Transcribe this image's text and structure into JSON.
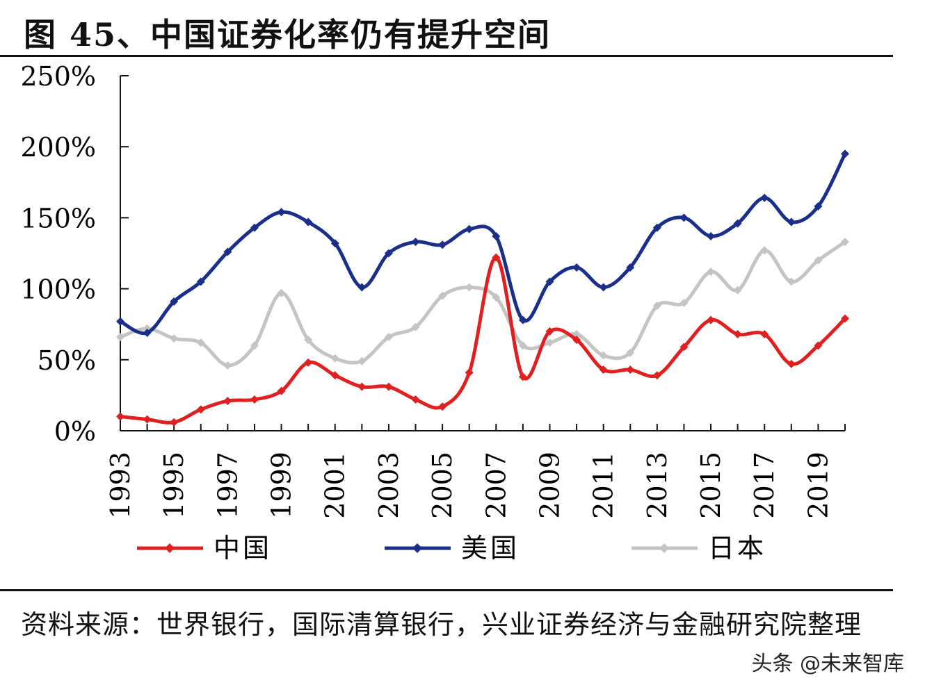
{
  "title": "图 45、中国证券化率仍有提升空间",
  "source": "资料来源：世界银行，国际清算银行，兴业证券经济与金融研究院整理",
  "watermark": "头条 @未来智库",
  "chart_data": {
    "type": "line",
    "title": "",
    "xlabel": "",
    "ylabel": "",
    "ylim": [
      0,
      250
    ],
    "yticks": [
      "0%",
      "50%",
      "100%",
      "150%",
      "200%",
      "250%"
    ],
    "x": [
      1993,
      1994,
      1995,
      1996,
      1997,
      1998,
      1999,
      2000,
      2001,
      2002,
      2003,
      2004,
      2005,
      2006,
      2007,
      2008,
      2009,
      2010,
      2011,
      2012,
      2013,
      2014,
      2015,
      2016,
      2017,
      2018,
      2019,
      2020
    ],
    "xtick_labels": [
      "1993",
      "1995",
      "1997",
      "1999",
      "2001",
      "2003",
      "2005",
      "2007",
      "2009",
      "2011",
      "2013",
      "2015",
      "2017",
      "2019"
    ],
    "legend_position": "bottom",
    "grid": false,
    "series": [
      {
        "name": "中国",
        "color": "#e02020",
        "values": [
          10,
          8,
          6,
          15,
          21,
          22,
          28,
          48,
          39,
          31,
          31,
          22,
          17,
          41,
          122,
          38,
          70,
          64,
          43,
          43,
          39,
          59,
          78,
          68,
          68,
          47,
          60,
          79
        ]
      },
      {
        "name": "美国",
        "color": "#1a2f8a",
        "values": [
          77,
          69,
          91,
          105,
          126,
          143,
          154,
          147,
          132,
          101,
          125,
          133,
          131,
          142,
          137,
          78,
          105,
          115,
          101,
          115,
          143,
          150,
          137,
          146,
          164,
          147,
          158,
          195
        ]
      },
      {
        "name": "日本",
        "color": "#c4c4c4",
        "values": [
          66,
          72,
          65,
          62,
          46,
          60,
          97,
          64,
          51,
          49,
          66,
          73,
          95,
          101,
          94,
          60,
          62,
          68,
          53,
          55,
          88,
          90,
          112,
          99,
          127,
          105,
          120,
          133
        ]
      }
    ]
  }
}
